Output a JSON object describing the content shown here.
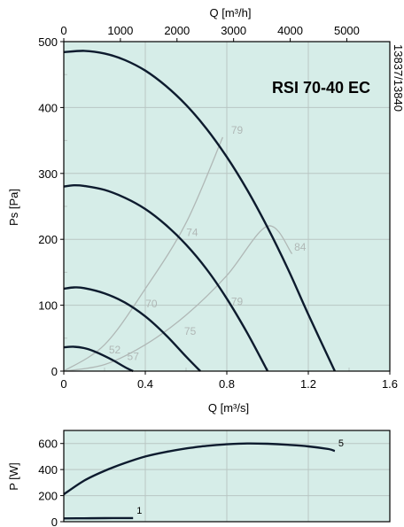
{
  "colors": {
    "plot_bg": "#d6ede8",
    "grid": "#b9c6c3",
    "curve": "#0d1b2e",
    "efficiency": "#b0b8b6",
    "axis": "#000000"
  },
  "chart_data": [
    {
      "type": "line",
      "model": "RSI 70-40 EC",
      "code": "13837/13840",
      "xlabel": "Q [m³/s]",
      "ylabel": "Ps [Pa]",
      "x2label": "Q [m³/h]",
      "xlim": [
        0,
        1.6
      ],
      "ylim": [
        0,
        500
      ],
      "x2lim": [
        0,
        5760
      ],
      "x_ticks": [
        "0",
        "0.4",
        "0.8",
        "1.2",
        "1.6"
      ],
      "y_ticks": [
        "0",
        "100",
        "200",
        "300",
        "400",
        "500"
      ],
      "x2_ticks": [
        "0",
        "1000",
        "2000",
        "3000",
        "4000",
        "5000"
      ],
      "series": [
        {
          "x": [
            0,
            0.05,
            0.1,
            0.15,
            0.2,
            0.25,
            0.3,
            0.34
          ],
          "y": [
            36,
            37,
            35,
            30,
            23,
            15,
            6,
            0
          ]
        },
        {
          "x": [
            0,
            0.05,
            0.1,
            0.2,
            0.3,
            0.4,
            0.5,
            0.6,
            0.67
          ],
          "y": [
            125,
            127,
            126,
            118,
            104,
            83,
            55,
            22,
            0
          ]
        },
        {
          "x": [
            0,
            0.05,
            0.1,
            0.2,
            0.3,
            0.4,
            0.5,
            0.6,
            0.7,
            0.8,
            0.9,
            1.0
          ],
          "y": [
            280,
            282,
            281,
            275,
            263,
            246,
            222,
            192,
            155,
            110,
            58,
            0
          ]
        },
        {
          "x": [
            0,
            0.1,
            0.2,
            0.3,
            0.4,
            0.5,
            0.6,
            0.7,
            0.8,
            0.9,
            1.0,
            1.1,
            1.2,
            1.33
          ],
          "y": [
            484,
            486,
            482,
            472,
            456,
            433,
            404,
            368,
            325,
            275,
            218,
            155,
            86,
            0
          ]
        }
      ],
      "efficiency_lines": [
        {
          "x": [
            0,
            0.2,
            0.4,
            0.6,
            0.78
          ],
          "y": [
            0,
            40,
            125,
            225,
            355
          ]
        },
        {
          "x": [
            0,
            0.2,
            0.4,
            0.6,
            0.8,
            1.0,
            1.12
          ],
          "y": [
            0,
            10,
            40,
            85,
            145,
            220,
            178
          ]
        }
      ],
      "efficiency_labels": [
        {
          "text": "52",
          "x": 0.25,
          "y": 27
        },
        {
          "text": "57",
          "x": 0.34,
          "y": 17
        },
        {
          "text": "70",
          "x": 0.43,
          "y": 97
        },
        {
          "text": "75",
          "x": 0.62,
          "y": 55
        },
        {
          "text": "74",
          "x": 0.63,
          "y": 205
        },
        {
          "text": "79",
          "x": 0.85,
          "y": 100
        },
        {
          "text": "79",
          "x": 0.85,
          "y": 360
        },
        {
          "text": "84",
          "x": 1.16,
          "y": 183
        }
      ]
    },
    {
      "type": "line",
      "ylabel": "P [W]",
      "xlim": [
        0,
        1.6
      ],
      "ylim": [
        0,
        700
      ],
      "y_ticks": [
        "0",
        "200",
        "400",
        "600"
      ],
      "series": [
        {
          "name": "1",
          "x": [
            0,
            0.1,
            0.2,
            0.34
          ],
          "y": [
            25,
            26,
            27,
            28
          ]
        },
        {
          "name": "5",
          "x": [
            0,
            0.1,
            0.2,
            0.3,
            0.4,
            0.5,
            0.6,
            0.7,
            0.8,
            0.9,
            1.0,
            1.1,
            1.2,
            1.3,
            1.33
          ],
          "y": [
            210,
            315,
            390,
            450,
            500,
            535,
            562,
            582,
            594,
            600,
            598,
            590,
            578,
            557,
            542
          ]
        }
      ]
    }
  ]
}
